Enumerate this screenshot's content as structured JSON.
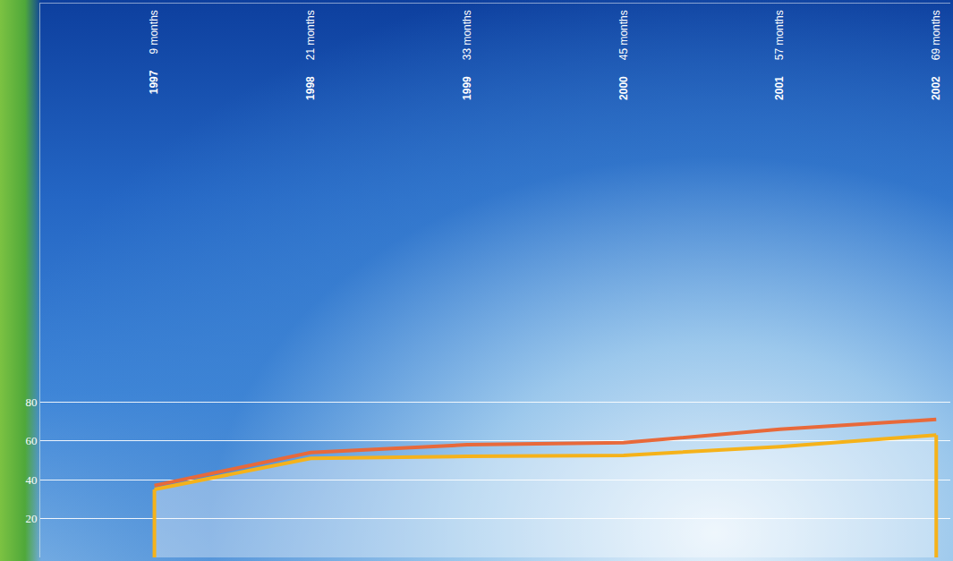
{
  "chart_data": {
    "type": "line",
    "x": [
      1997,
      1998,
      1999,
      2000,
      2001,
      2002
    ],
    "annotations": [
      "9 months",
      "21 months",
      "33 months",
      "45 months",
      "57 months",
      "69 months"
    ],
    "xlim": [
      1996.27,
      2002.09
    ],
    "xticks": [
      1997,
      1998,
      1999,
      2000,
      2001,
      2002
    ],
    "ylim": [
      0,
      285
    ],
    "yticks": [
      20,
      40,
      60,
      80
    ],
    "grid": true,
    "series": [
      {
        "color": "#e8693a",
        "values": [
          37,
          54,
          58,
          59,
          66,
          71
        ]
      },
      {
        "color": "#f5b21a",
        "type": "area",
        "values": [
          35,
          51,
          52,
          52.5,
          57,
          63
        ]
      }
    ]
  }
}
